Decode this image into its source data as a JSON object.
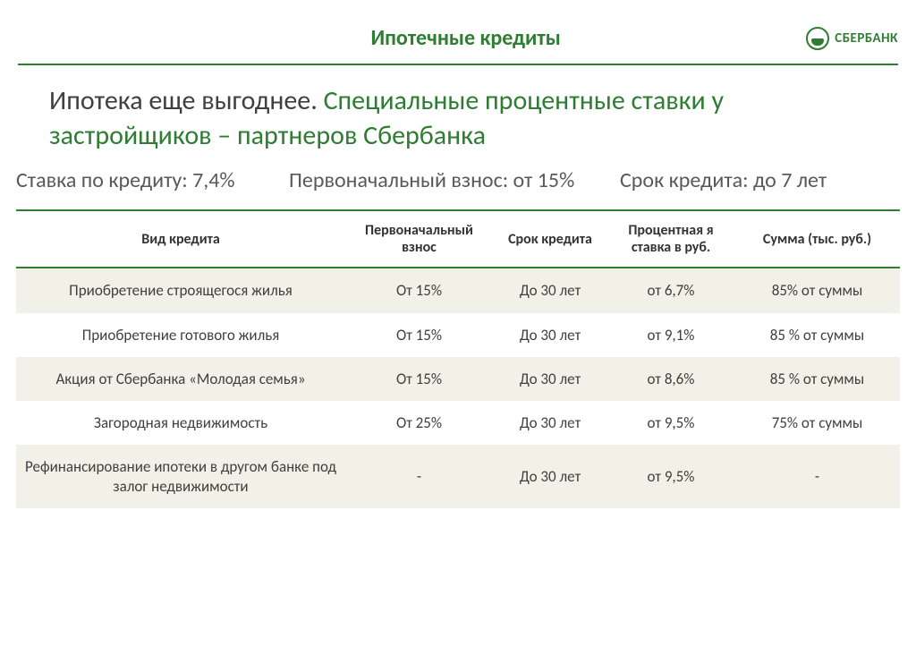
{
  "header": {
    "page_title": "Ипотечные кредиты",
    "logo_text": "СБЕРБАНК"
  },
  "subtitle": {
    "part1": "Ипотека еще выгоднее. ",
    "part2": "Специальные процентные ставки у застройщиков – партнеров Сбербанка"
  },
  "stats": {
    "rate": "Ставка по кредиту: 7,4%",
    "down_payment": "Первоначальный взнос: от 15%",
    "term": "Срок кредита: до 7 лет"
  },
  "table": {
    "columns": [
      "Вид кредита",
      "Первоначальный взнос",
      "Срок кредита",
      "Процентная я ставка в руб.",
      "Сумма (тыс. руб.)"
    ],
    "rows": [
      {
        "type": "Приобретение строящегося жилья",
        "down_payment": "От 15%",
        "term": "До 30 лет",
        "rate": "от 6,7%",
        "amount": "85% от суммы",
        "alt": true
      },
      {
        "type": "Приобретение готового жилья",
        "down_payment": "От 15%",
        "term": "До 30 лет",
        "rate": "от 9,1%",
        "amount": "85 % от суммы",
        "alt": false
      },
      {
        "type": "Акция от Сбербанка «Молодая семья»",
        "down_payment": "От 15%",
        "term": "До 30 лет",
        "rate": "от 8,6%",
        "amount": "85 % от суммы",
        "alt": true
      },
      {
        "type": "Загородная недвижимость",
        "down_payment": "От 25%",
        "term": "До 30 лет",
        "rate": "от 9,5%",
        "amount": "75%  от суммы",
        "alt": false
      },
      {
        "type": "Рефинансирование ипотеки в другом банке под залог недвижимости",
        "down_payment": "-",
        "term": "До 30 лет",
        "rate": "от  9,5%",
        "amount": "-",
        "alt": true
      }
    ]
  },
  "colors": {
    "brand_green": "#2e7d32",
    "text_dark": "#404040",
    "text_gray": "#595959",
    "row_alt_bg": "#f1f1e7",
    "background": "#ffffff"
  }
}
